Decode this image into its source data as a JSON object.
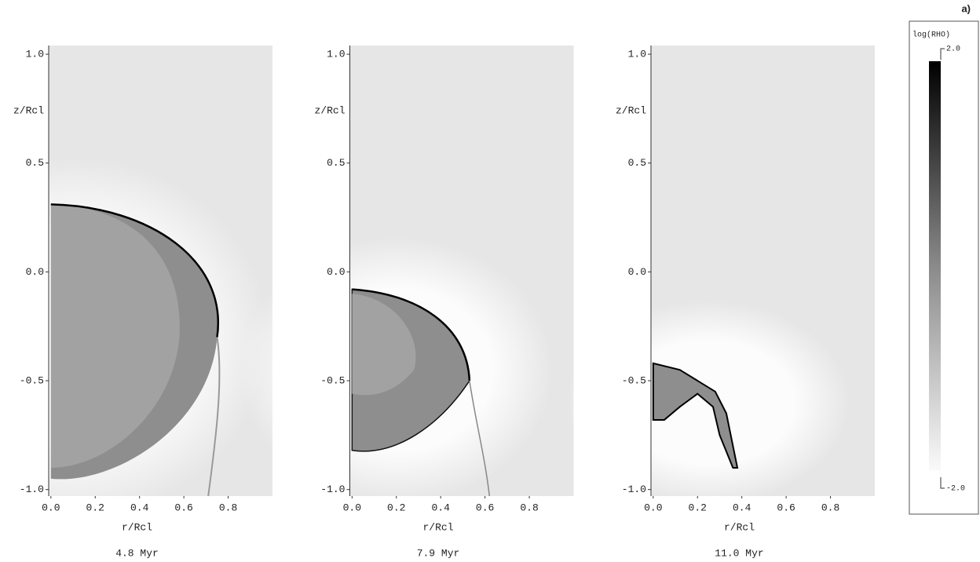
{
  "chart_data": [
    {
      "type": "heatmap",
      "xlabel": "r/Rcl",
      "ylabel": "z/Rcl",
      "caption": "4.8 Myr",
      "xlim": [
        -0.01,
        1.0
      ],
      "ylim": [
        -1.03,
        1.04
      ],
      "xticks": [
        {
          "value": 0,
          "label": "0.0"
        },
        0.2,
        0.4,
        0.6,
        0.8
      ],
      "yticks": [
        {
          "value": -1,
          "label": "-1.0"
        },
        -0.5,
        {
          "value": 0,
          "label": "0.0"
        },
        0.5,
        {
          "value": 1,
          "label": "1.0"
        }
      ]
    },
    {
      "type": "heatmap",
      "xlabel": "r/Rcl",
      "ylabel": "z/Rcl",
      "caption": "7.9 Myr",
      "xlim": [
        -0.01,
        1.0
      ],
      "ylim": [
        -1.03,
        1.04
      ],
      "xticks": [
        {
          "value": 0,
          "label": "0.0"
        },
        0.2,
        0.4,
        0.6,
        0.8
      ],
      "yticks": [
        {
          "value": -1,
          "label": "-1.0"
        },
        -0.5,
        {
          "value": 0,
          "label": "0.0"
        },
        0.5,
        {
          "value": 1,
          "label": "1.0"
        }
      ]
    },
    {
      "type": "heatmap",
      "xlabel": "r/Rcl",
      "ylabel": "z/Rcl",
      "caption": "11.0 Myr",
      "xlim": [
        -0.01,
        1.0
      ],
      "ylim": [
        -1.03,
        1.04
      ],
      "xticks": [
        {
          "value": 0,
          "label": "0.0"
        },
        0.2,
        0.4,
        0.6,
        0.8
      ],
      "yticks": [
        {
          "value": -1,
          "label": "-1.0"
        },
        -0.5,
        {
          "value": 0,
          "label": "0.0"
        },
        0.5,
        {
          "value": 1,
          "label": "1.0"
        }
      ]
    },
    {
      "type": "colorbar",
      "panel_label": "a)",
      "title": "log(RHO)",
      "ylim": [
        -2,
        2
      ],
      "yticks": [
        {
          "value": -2,
          "label": "-2.0"
        },
        {
          "value": 2,
          "label": "2.0"
        }
      ]
    }
  ]
}
